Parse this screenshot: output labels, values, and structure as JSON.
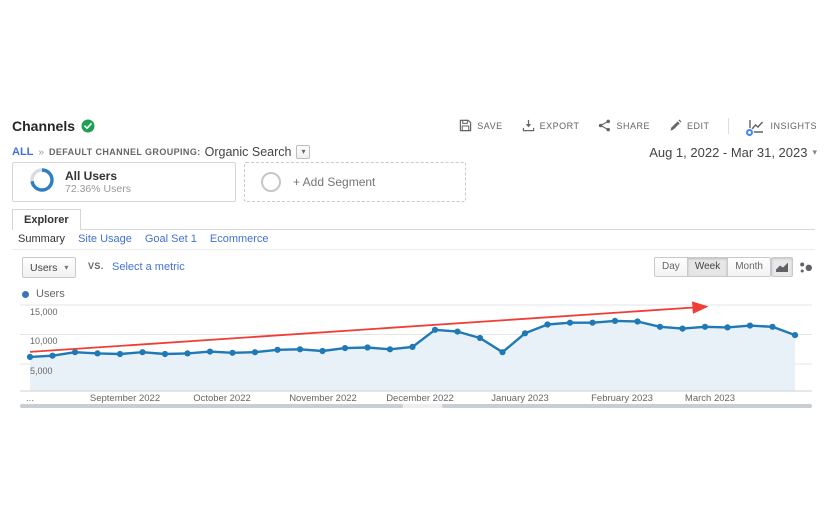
{
  "header": {
    "title": "Channels",
    "verified_icon": "green-check",
    "toolbar": {
      "save": "SAVE",
      "export": "EXPORT",
      "share": "SHARE",
      "edit": "EDIT",
      "insights": "INSIGHTS"
    }
  },
  "breadcrumb": {
    "all": "ALL",
    "separator": "»",
    "group_label": "DEFAULT CHANNEL GROUPING:",
    "value": "Organic Search"
  },
  "date_range": {
    "label": "Aug 1, 2022 - Mar 31, 2023"
  },
  "segments": {
    "all_users": {
      "title": "All Users",
      "subtitle": "72.36% Users",
      "percent": 72.36
    },
    "add_segment": {
      "label": "+ Add Segment"
    }
  },
  "tabs": {
    "explorer": "Explorer"
  },
  "subnav": {
    "items": [
      {
        "label": "Summary",
        "active": true
      },
      {
        "label": "Site Usage",
        "active": false
      },
      {
        "label": "Goal Set 1",
        "active": false
      },
      {
        "label": "Ecommerce",
        "active": false
      }
    ]
  },
  "controls": {
    "metric_dropdown": "Users",
    "vs": "VS.",
    "select_metric": "Select a metric",
    "granularity": [
      {
        "label": "Day",
        "active": false
      },
      {
        "label": "Week",
        "active": true
      },
      {
        "label": "Month",
        "active": false
      }
    ]
  },
  "legend": {
    "label": "Users"
  },
  "chart_data": {
    "type": "line",
    "title": "Users by week (Organic Search)",
    "legend": "Users",
    "granularity": "Week",
    "x": [
      "Aug 1",
      "Aug 8",
      "Aug 15",
      "Aug 22",
      "Aug 29",
      "Sep 5",
      "Sep 12",
      "Sep 19",
      "Sep 26",
      "Oct 3",
      "Oct 10",
      "Oct 17",
      "Oct 24",
      "Oct 31",
      "Nov 7",
      "Nov 14",
      "Nov 21",
      "Nov 28",
      "Dec 5",
      "Dec 12",
      "Dec 19",
      "Dec 26",
      "Jan 2",
      "Jan 9",
      "Jan 16",
      "Jan 23",
      "Jan 30",
      "Feb 6",
      "Feb 13",
      "Feb 20",
      "Feb 27",
      "Mar 6",
      "Mar 13",
      "Mar 20",
      "Mar 27"
    ],
    "series": [
      {
        "name": "Users",
        "color": "#1e79b4",
        "fill_color": "#e9f1f8",
        "values": [
          6200,
          6400,
          7000,
          6800,
          6700,
          7000,
          6700,
          6800,
          7100,
          6900,
          7000,
          7400,
          7500,
          7200,
          7700,
          7800,
          7500,
          7900,
          10800,
          10500,
          9400,
          7000,
          10200,
          11700,
          12000,
          12000,
          12300,
          12200,
          11300,
          11000,
          11300,
          11200,
          11500,
          11300,
          9900
        ]
      }
    ],
    "y_ticks": [
      {
        "value": 5000,
        "label": "5,000"
      },
      {
        "value": 10000,
        "label": "10,000"
      },
      {
        "value": 15000,
        "label": "15,000"
      }
    ],
    "ylim": [
      0,
      15800
    ],
    "grid": true,
    "legend_position": "top-left",
    "x_axis_labels": [
      "...",
      "September 2022",
      "October 2022",
      "November 2022",
      "December 2022",
      "January 2023",
      "February 2023",
      "March 2023"
    ],
    "annotation": {
      "type": "trend_arrow",
      "color": "#ef3e36",
      "start": {
        "x_index": 0,
        "value": 7050
      },
      "end": {
        "x_index": 30,
        "value": 14700
      }
    }
  }
}
